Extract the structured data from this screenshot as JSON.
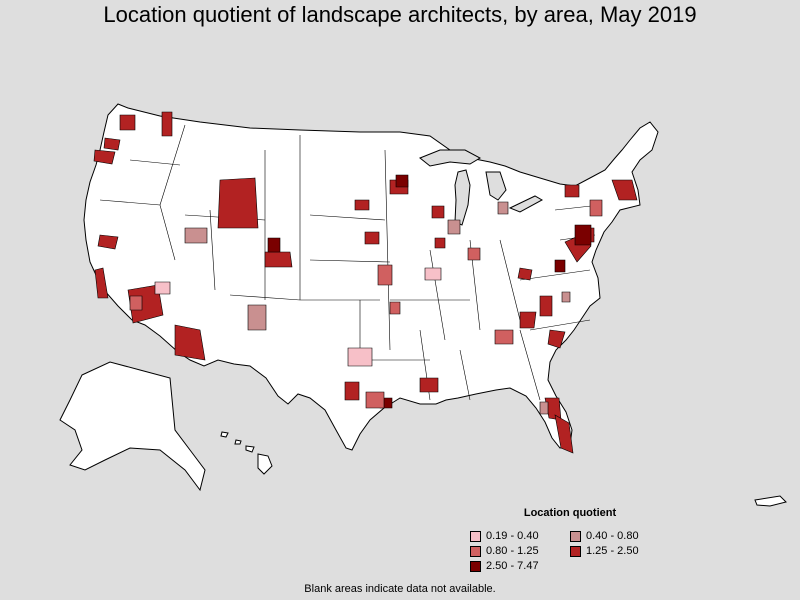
{
  "title": "Location quotient of landscape architects, by area, May 2019",
  "legend": {
    "title": "Location quotient",
    "items": [
      {
        "label": "0.19 - 0.40",
        "color": "#f7c0c8"
      },
      {
        "label": "0.40 - 0.80",
        "color": "#c99090"
      },
      {
        "label": "0.80 - 1.25",
        "color": "#d06060"
      },
      {
        "label": "1.25 - 2.50",
        "color": "#b22222"
      },
      {
        "label": "2.50 - 7.47",
        "color": "#7a0000"
      }
    ]
  },
  "footnote": "Blank areas indicate data not available.",
  "colors": {
    "background": "#dedede",
    "land": "#ffffff",
    "border": "#000000",
    "lakes": "#dedede"
  }
}
